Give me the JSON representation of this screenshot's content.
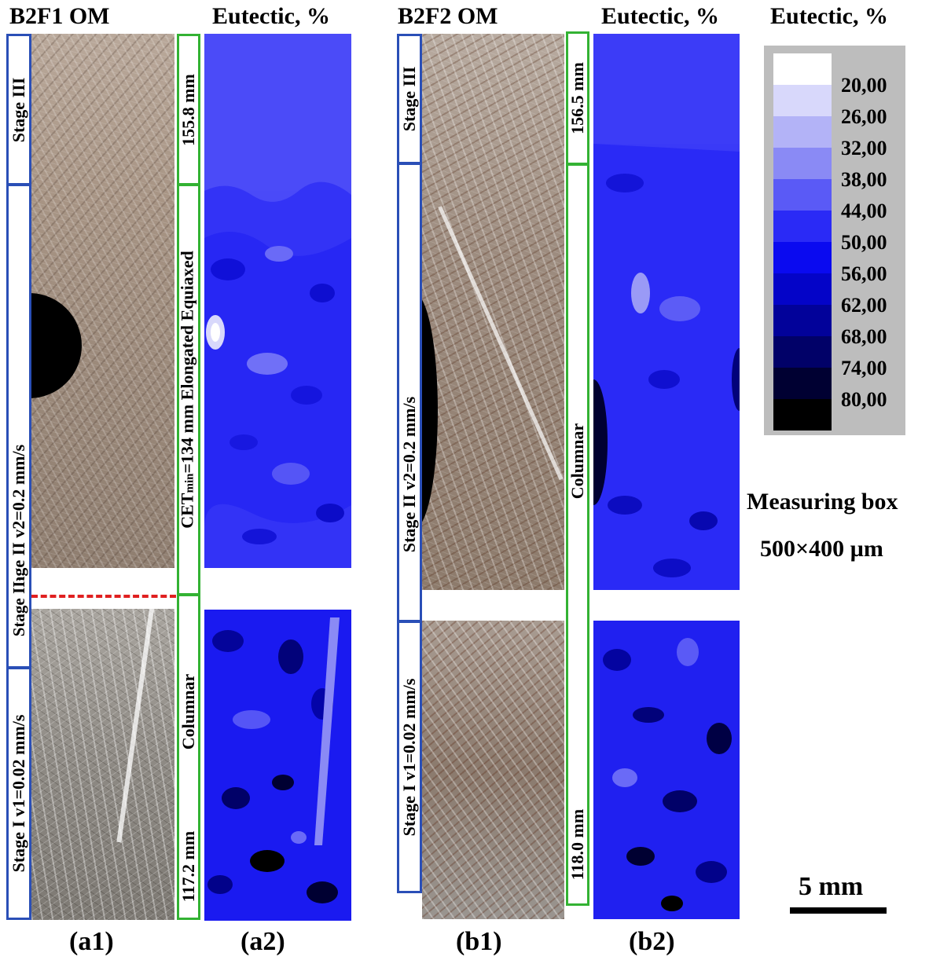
{
  "headers": {
    "a1": "B2F1   OM",
    "a2": "Eutectic, %",
    "b1": "B2F2   OM",
    "b2": "Eutectic, %",
    "legend": "Eutectic, %"
  },
  "panel_labels": {
    "a1": "(a1)",
    "a2": "(a2)",
    "b1": "(b1)",
    "b2": "(b2)"
  },
  "sample_a": {
    "stage3": "Stage III",
    "stage2": "Stage II     v2=0.2 mm/s",
    "stage2b": "Stage II",
    "stage1": "Stage I      v1=0.02 mm/s",
    "length_top": "155.8 mm",
    "cet_prefix": "CET",
    "cet_sub": "min",
    "cet_rest": "=134 mm  Elongated Equiaxed",
    "columnar": "Columnar",
    "length_bottom": "117.2 mm"
  },
  "sample_b": {
    "stage3": "Stage III",
    "stage2": "Stage II     v2=0.2 mm/s",
    "stage1": "Stage I      v1=0.02 mm/s",
    "length_top": "156.5 mm",
    "columnar": "Columnar",
    "length_bottom": "118.0 mm"
  },
  "legend": {
    "levels": [
      "20,00",
      "26,00",
      "32,00",
      "38,00",
      "44,00",
      "50,00",
      "56,00",
      "62,00",
      "68,00",
      "74,00",
      "80,00"
    ],
    "colors": [
      "#ffffff",
      "#d8d8fb",
      "#b3b3f7",
      "#8a8af5",
      "#5a5af6",
      "#2a2af6",
      "#0a0af0",
      "#0404c8",
      "#02029a",
      "#010168",
      "#000032",
      "#000000"
    ]
  },
  "measuring_box": {
    "title": "Measuring box",
    "size": "500×400 µm"
  },
  "scale_bar": {
    "label": "5 mm"
  },
  "colors": {
    "stage_box": "#2a4fb7",
    "structure_box": "#33b233",
    "cet_line": "#e02020",
    "legend_bg": "#bdbdbd"
  }
}
